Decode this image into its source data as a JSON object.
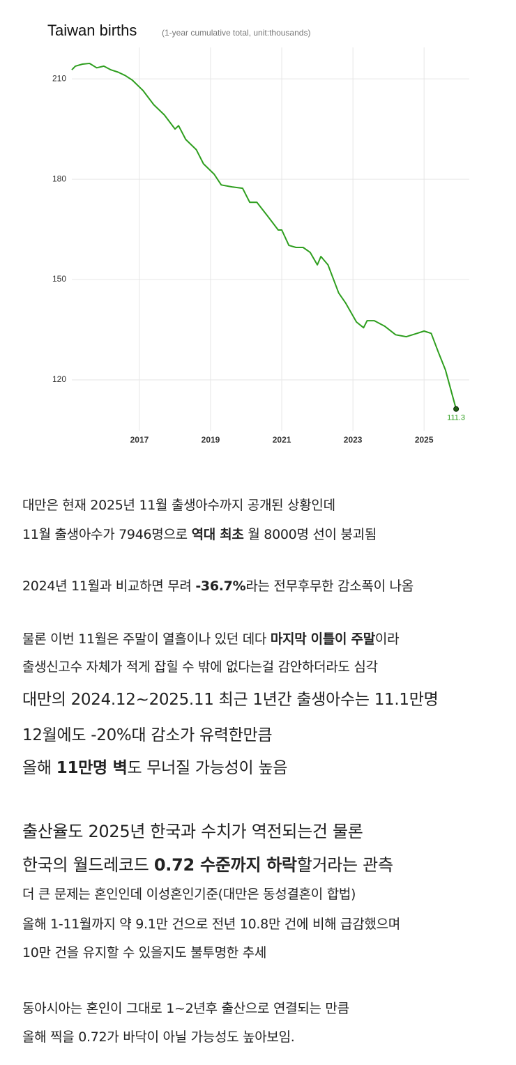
{
  "chart_data": {
    "type": "line",
    "title": "Taiwan births",
    "subtitle": "(1-year cumulative total, unit:thousands)",
    "color": "#2e9e1e",
    "x": [
      2015.1,
      2015.2,
      2015.4,
      2015.6,
      2015.8,
      2016.0,
      2016.2,
      2016.4,
      2016.6,
      2016.8,
      2017.1,
      2017.4,
      2017.7,
      2018.0,
      2018.1,
      2018.3,
      2018.6,
      2018.8,
      2019.1,
      2019.3,
      2019.6,
      2019.9,
      2020.1,
      2020.3,
      2020.6,
      2020.9,
      2021.0,
      2021.2,
      2021.4,
      2021.6,
      2021.8,
      2022.0,
      2022.1,
      2022.3,
      2022.6,
      2022.8,
      2023.1,
      2023.3,
      2023.4,
      2023.6,
      2023.9,
      2024.2,
      2024.5,
      2024.8,
      2025.0,
      2025.2,
      2025.4,
      2025.6,
      2025.9
    ],
    "values": [
      212.7,
      213.8,
      214.4,
      214.6,
      213.3,
      213.8,
      212.7,
      212,
      211,
      209.6,
      206.5,
      202.3,
      199.2,
      195,
      196,
      191.9,
      188.8,
      184.6,
      181.5,
      178.3,
      177.7,
      177.3,
      173.1,
      173.1,
      169,
      164.8,
      164.8,
      160.2,
      159.6,
      159.6,
      158.1,
      154.4,
      156.9,
      154.4,
      146,
      142.9,
      137.3,
      135.6,
      137.7,
      137.7,
      136,
      133.5,
      132.9,
      133.9,
      134.6,
      133.9,
      128.3,
      123,
      111.3
    ],
    "xlim": [
      2015.1,
      2026.27
    ],
    "xticks": [
      2017,
      2019,
      2021,
      2023,
      2025
    ],
    "ylim": [
      104.8,
      219.4
    ],
    "yticks": [
      120,
      150,
      180,
      210
    ],
    "grid": true
  },
  "text": {
    "lines": [
      [
        "대만은 현재 2025년 11월 출생아수까지 공개된 상황인데"
      ],
      [
        "11월 출생아수가 7946명으로 ",
        "역대 최초",
        " 월 8000명 선이 붕괴됨"
      ],
      [
        "2024년 11월과 비교하면 무려 ",
        "-36.7%",
        "라는 전무후무한 감소폭이 나옴"
      ],
      [
        "물론 이번 11월은 주말이 열흘이나 있던 데다 ",
        "마지막 이틀이 주말",
        "이라"
      ],
      [
        "출생신고수 자체가 적게 잡힐 수 밖에 없다는걸 감안하더라도 심각"
      ],
      [
        "대만의 2024.12~2025.11 최근 1년간 출생아수는 11.1만명"
      ],
      [
        "12월에도 -20%대 감소가 유력한만큼"
      ],
      [
        "올해 ",
        "11만명 벽",
        "도 무너질 가능성이 높음"
      ],
      [
        "출산율도 2025년 한국과 수치가 역전되는건 물론"
      ],
      [
        "한국의 월드레코드 ",
        "0.72 수준까지 하락",
        "할거라는 관측"
      ],
      [
        "더 큰 문제는 혼인인데 이성혼인기준(대만은 동성결혼이 합법)"
      ],
      [
        "올해 1-11월까지 약 9.1만 건으로 전년 10.8만 건에 비해 급감했으며"
      ],
      [
        "10만 건을 유지할 수 있을지도 불투명한 추세"
      ],
      [
        "동아시아는 혼인이 그대로 1~2년후 출산으로 연결되는 만큼"
      ],
      [
        "올해 찍을 0.72가 바닥이 아닐 가능성도 높아보임."
      ]
    ]
  }
}
